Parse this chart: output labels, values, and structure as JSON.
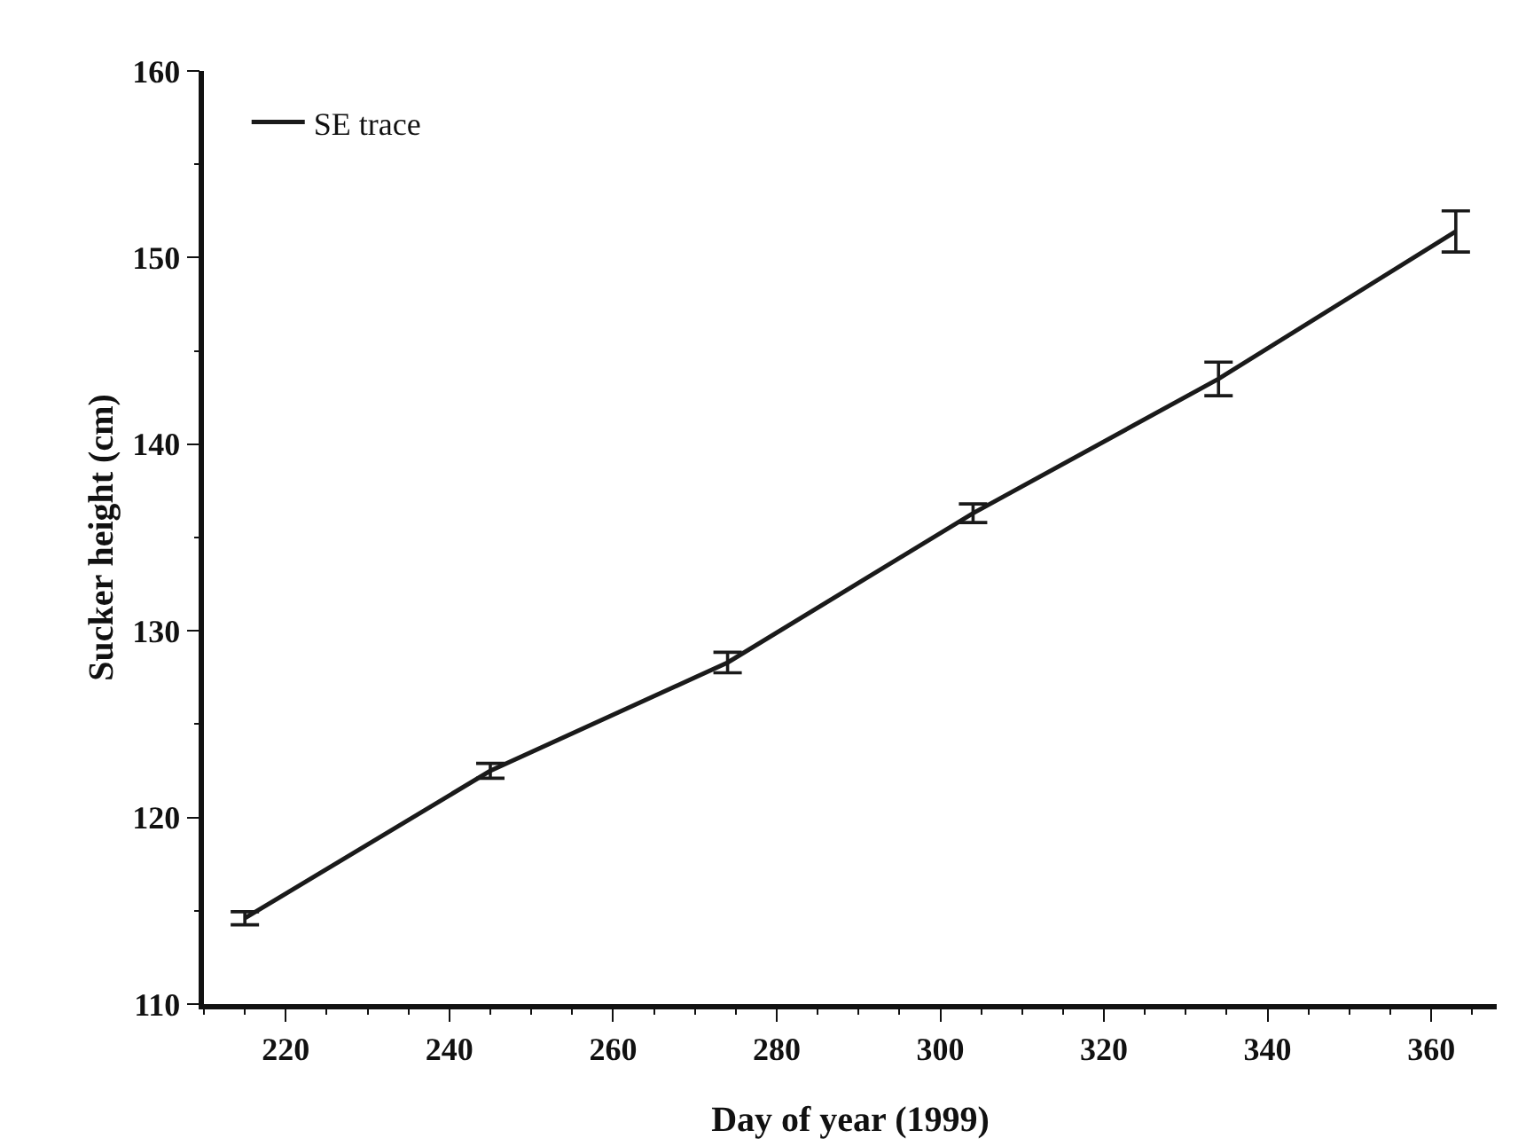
{
  "chart_data": {
    "type": "line",
    "xlabel": "Day of year (1999)",
    "ylabel": "Sucker height (cm)",
    "x": [
      215,
      245,
      274,
      304,
      334,
      363
    ],
    "series": [
      {
        "name": "SE trace",
        "color": "#1a1a1a",
        "values": [
          114.6,
          122.5,
          128.3,
          136.3,
          143.5,
          151.4
        ],
        "errors": [
          0.35,
          0.4,
          0.55,
          0.5,
          0.9,
          1.1
        ]
      }
    ],
    "xlim": [
      210,
      368
    ],
    "xticks": [
      220,
      240,
      260,
      280,
      300,
      320,
      340,
      360
    ],
    "ylim": [
      110,
      160
    ],
    "yticks": [
      110,
      120,
      130,
      140,
      150,
      160
    ],
    "grid": false,
    "legend": "top left",
    "line_style": "solid"
  }
}
